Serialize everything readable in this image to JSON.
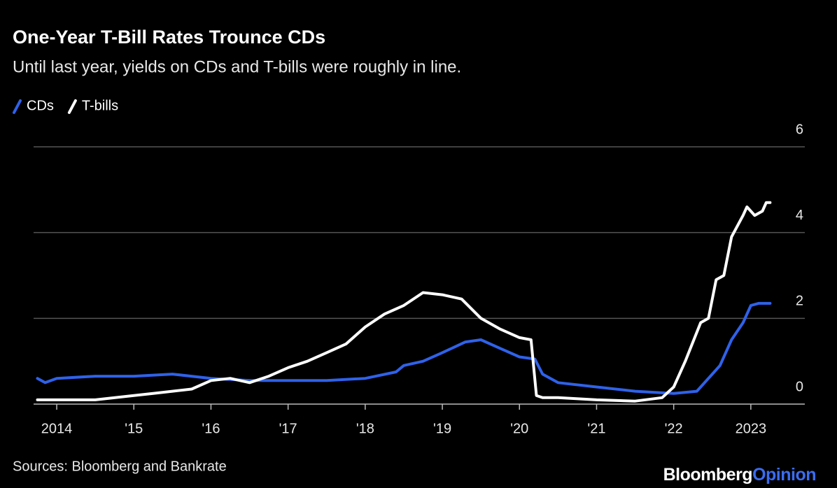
{
  "chart_data": {
    "type": "line",
    "title": "One-Year T-Bill Rates Trounce CDs",
    "subtitle": "Until last year, yields on CDs and T-bills were roughly in line.",
    "source": "Sources: Bloomberg and Bankrate",
    "logo_main": "Bloomberg",
    "logo_accent": "Opinion",
    "logo_accent_color": "#3b6cf0",
    "xlim": [
      2013.7,
      2023.7
    ],
    "xticks": [
      {
        "value": 2014,
        "label": "2014"
      },
      {
        "value": 2015,
        "label": "'15"
      },
      {
        "value": 2016,
        "label": "'16"
      },
      {
        "value": 2017,
        "label": "'17"
      },
      {
        "value": 2018,
        "label": "'18"
      },
      {
        "value": 2019,
        "label": "'19"
      },
      {
        "value": 2020,
        "label": "'20"
      },
      {
        "value": 2021,
        "label": "'21"
      },
      {
        "value": 2022,
        "label": "'22"
      },
      {
        "value": 2023,
        "label": "2023"
      }
    ],
    "ylim": [
      0,
      6
    ],
    "yticks": [
      0,
      2,
      4,
      6
    ],
    "grid": true,
    "series": [
      {
        "name": "CDs",
        "color": "#2f62ea",
        "x": [
          2013.75,
          2013.85,
          2014,
          2014.5,
          2015,
          2015.5,
          2016,
          2016.5,
          2017,
          2017.5,
          2018,
          2018.4,
          2018.5,
          2018.75,
          2019,
          2019.3,
          2019.5,
          2019.75,
          2020,
          2020.2,
          2020.3,
          2020.5,
          2021,
          2021.5,
          2022,
          2022.3,
          2022.45,
          2022.6,
          2022.75,
          2022.9,
          2023.0,
          2023.1,
          2023.25
        ],
        "values": [
          0.6,
          0.5,
          0.6,
          0.65,
          0.65,
          0.7,
          0.6,
          0.55,
          0.55,
          0.55,
          0.6,
          0.75,
          0.9,
          1.0,
          1.2,
          1.45,
          1.5,
          1.3,
          1.1,
          1.05,
          0.7,
          0.5,
          0.4,
          0.3,
          0.25,
          0.3,
          0.6,
          0.9,
          1.5,
          1.9,
          2.3,
          2.35,
          2.35
        ]
      },
      {
        "name": "T-bills",
        "color": "#ffffff",
        "x": [
          2013.75,
          2014,
          2014.5,
          2015,
          2015.25,
          2015.5,
          2015.75,
          2016,
          2016.25,
          2016.5,
          2016.75,
          2017,
          2017.25,
          2017.5,
          2017.75,
          2018,
          2018.25,
          2018.5,
          2018.75,
          2019,
          2019.25,
          2019.5,
          2019.75,
          2020,
          2020.15,
          2020.22,
          2020.3,
          2020.5,
          2021,
          2021.5,
          2021.85,
          2022,
          2022.15,
          2022.35,
          2022.45,
          2022.55,
          2022.65,
          2022.75,
          2022.9,
          2022.95,
          2023.05,
          2023.15,
          2023.2,
          2023.25
        ],
        "values": [
          0.1,
          0.1,
          0.1,
          0.2,
          0.25,
          0.3,
          0.35,
          0.55,
          0.6,
          0.5,
          0.65,
          0.85,
          1.0,
          1.2,
          1.4,
          1.8,
          2.1,
          2.3,
          2.6,
          2.55,
          2.45,
          2.0,
          1.75,
          1.55,
          1.5,
          0.2,
          0.15,
          0.15,
          0.1,
          0.07,
          0.15,
          0.4,
          1.0,
          1.9,
          2.0,
          2.9,
          3.0,
          3.9,
          4.4,
          4.6,
          4.4,
          4.5,
          4.7,
          4.7
        ]
      }
    ]
  }
}
